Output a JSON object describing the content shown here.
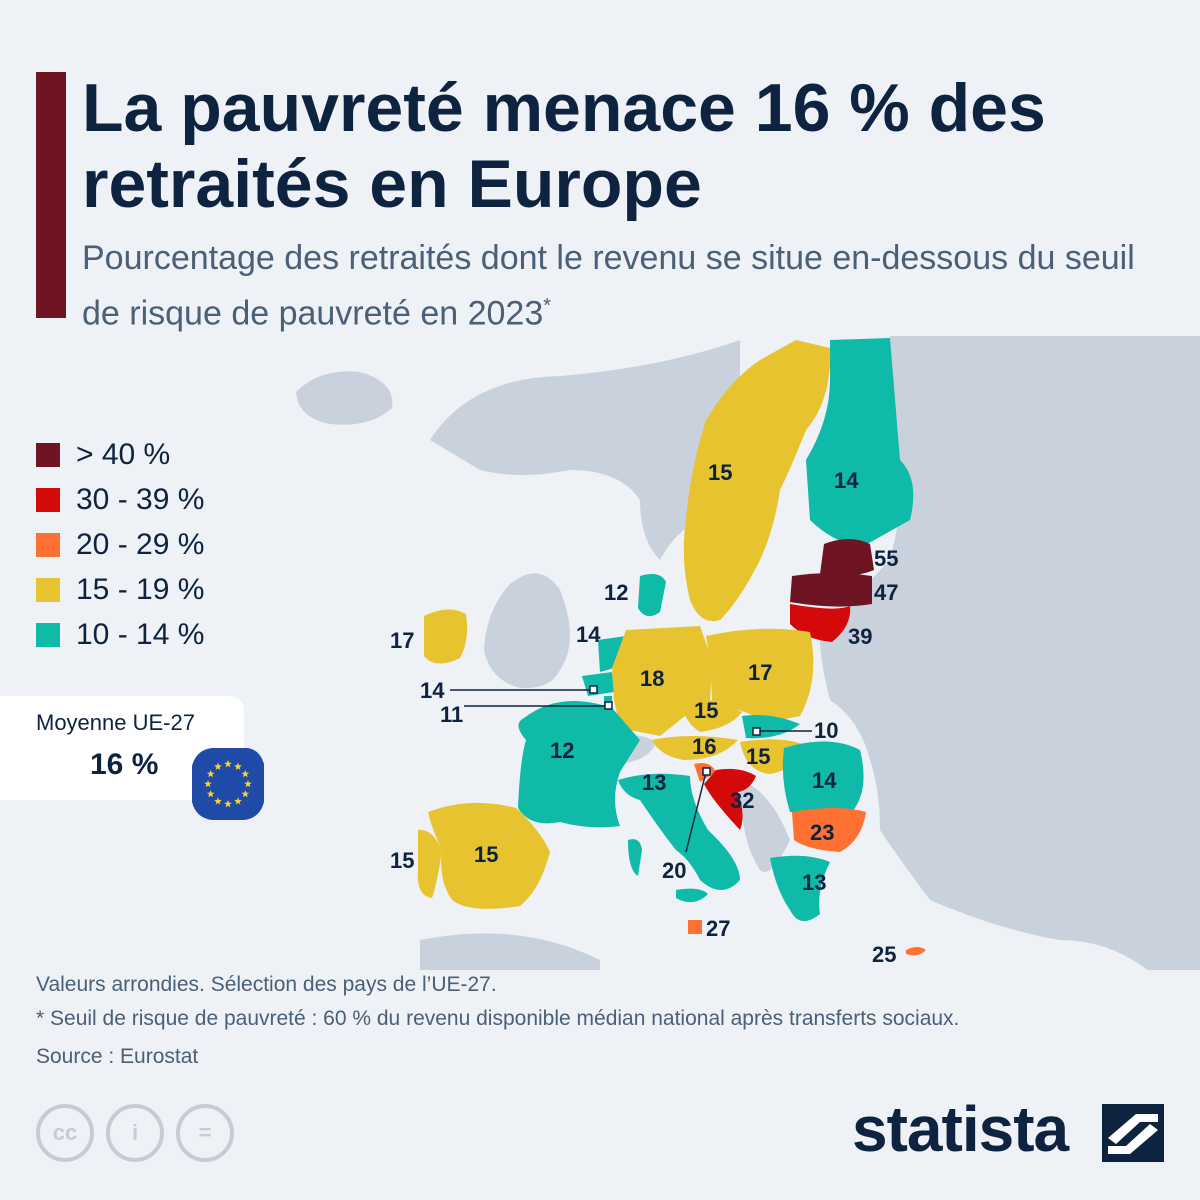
{
  "title": "La pauvreté menace 16 % des retraités en Europe",
  "subtitle": "Pourcentage des retraités dont le revenu se situe en-dessous du seuil de risque de pauvreté en 2023",
  "subtitle_marker": "*",
  "colors": {
    "gt40": "#6e1423",
    "c30_39": "#d40a0a",
    "c20_29": "#ff7033",
    "c15_19": "#e8c330",
    "c10_14": "#0fbaa8",
    "non_eu_land": "#c9d2dc",
    "sea": "#eef1f5"
  },
  "legend": [
    {
      "label": "> 40 %",
      "color": "#6e1423"
    },
    {
      "label": "30 - 39 %",
      "color": "#d40a0a"
    },
    {
      "label": "20 - 29 %",
      "color": "#ff7033"
    },
    {
      "label": "15 - 19 %",
      "color": "#e8c330"
    },
    {
      "label": "10 - 14 %",
      "color": "#0fbaa8"
    }
  ],
  "average": {
    "label": "Moyenne UE-27",
    "value": "16 %",
    "icon": "eu-flag-icon"
  },
  "map_values": {
    "finland": "14",
    "sweden": "15",
    "estonia": "55",
    "latvia": "47",
    "lithuania": "39",
    "denmark": "12",
    "netherlands": "14",
    "belgium": "14",
    "luxembourg": "11",
    "ireland": "17",
    "germany": "18",
    "poland": "17",
    "czechia": "15",
    "slovakia": "10",
    "austria": "16",
    "hungary": "15",
    "france": "12",
    "romania": "14",
    "slovenia": "20",
    "croatia": "32",
    "italy": "13",
    "bulgaria": "23",
    "spain": "15",
    "portugal": "15",
    "greece": "13",
    "malta": "27",
    "cyprus": "25"
  },
  "footer": {
    "note1": "Valeurs arrondies. Sélection des pays de l’UE-27.",
    "note2": "* Seuil de risque de pauvreté : 60 % du revenu disponible médian national après transferts sociaux.",
    "source": "Source : Eurostat"
  },
  "license_icons": {
    "cc": "cc",
    "by": "i",
    "nd": "="
  },
  "brand": "statista"
}
